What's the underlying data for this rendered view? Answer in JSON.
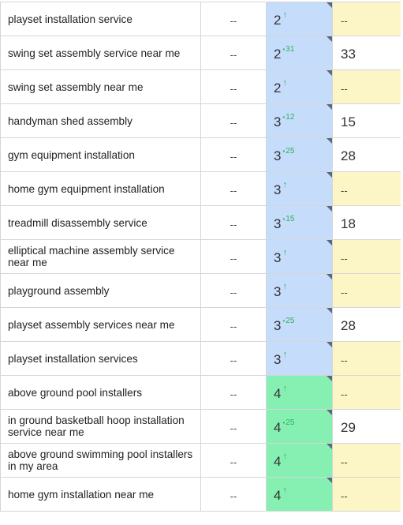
{
  "placeholder_dash": "--",
  "up_arrow": "↑",
  "delta_dot": "•",
  "colors": {
    "rank_blue": "#c6dcfb",
    "rank_green": "#86f0b2",
    "volume_empty": "#fcf5c6",
    "delta_green": "#2cb35e"
  },
  "rows": [
    {
      "keyword": "playset installation service",
      "previous": "--",
      "rank": "2",
      "change": "↑",
      "volume": "--"
    },
    {
      "keyword": "swing set assembly service near me",
      "previous": "--",
      "rank": "2",
      "change": "31",
      "volume": "33"
    },
    {
      "keyword": "swing set assembly near me",
      "previous": "--",
      "rank": "2",
      "change": "↑",
      "volume": "--"
    },
    {
      "keyword": "handyman shed assembly",
      "previous": "--",
      "rank": "3",
      "change": "12",
      "volume": "15"
    },
    {
      "keyword": "gym equipment installation",
      "previous": "--",
      "rank": "3",
      "change": "25",
      "volume": "28"
    },
    {
      "keyword": "home gym equipment installation",
      "previous": "--",
      "rank": "3",
      "change": "↑",
      "volume": "--"
    },
    {
      "keyword": "treadmill disassembly service",
      "previous": "--",
      "rank": "3",
      "change": "15",
      "volume": "18"
    },
    {
      "keyword": "elliptical machine assembly service near me",
      "previous": "--",
      "rank": "3",
      "change": "↑",
      "volume": "--"
    },
    {
      "keyword": "playground assembly",
      "previous": "--",
      "rank": "3",
      "change": "↑",
      "volume": "--"
    },
    {
      "keyword": "playset assembly services near me",
      "previous": "--",
      "rank": "3",
      "change": "25",
      "volume": "28"
    },
    {
      "keyword": "playset installation services",
      "previous": "--",
      "rank": "3",
      "change": "↑",
      "volume": "--"
    },
    {
      "keyword": "above ground pool installers",
      "previous": "--",
      "rank": "4",
      "change": "↑",
      "volume": "--"
    },
    {
      "keyword": "in ground basketball hoop installation service near me",
      "previous": "--",
      "rank": "4",
      "change": "25",
      "volume": "29"
    },
    {
      "keyword": "above ground swimming pool installers in my area",
      "previous": "--",
      "rank": "4",
      "change": "↑",
      "volume": "--"
    },
    {
      "keyword": "home gym installation near me",
      "previous": "--",
      "rank": "4",
      "change": "↑",
      "volume": "--"
    }
  ]
}
